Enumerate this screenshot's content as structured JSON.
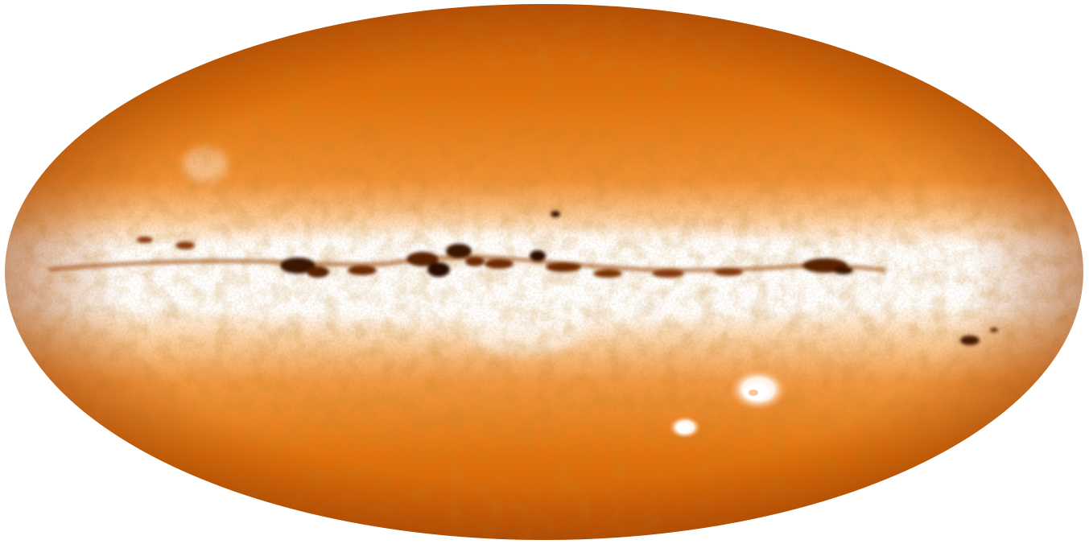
{
  "figure": {
    "colors": {
      "background": "#ffffff",
      "halo_deep": "#cf5f08",
      "halo": "#e8790f",
      "halo_light": "#f59a45",
      "band_glow": "#fde2c4",
      "band_core": "#ffffff",
      "dust_lane": "#6e2c05",
      "dust_dark": "#2a0c02",
      "cloud_glow": "#fff6ee"
    },
    "features": [
      "galactic-plane-band",
      "dark-dust-lane",
      "large-magellanic-cloud",
      "small-magellanic-cloud"
    ]
  }
}
